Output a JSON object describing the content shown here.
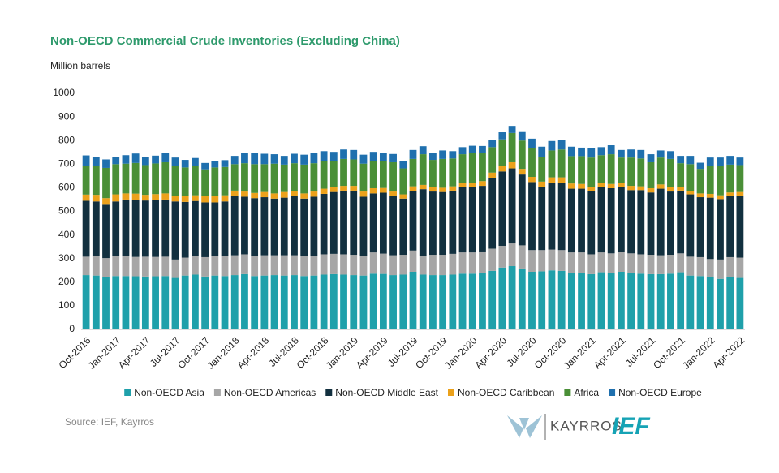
{
  "chart_data": {
    "type": "stacked_bar",
    "title": "Non-OECD Commercial Crude Inventories (Excluding China)",
    "y_label": "Million barrels",
    "source": "Source: IEF, Kayrros",
    "logos": [
      "KAYRROS",
      "IEF"
    ],
    "ylim": [
      0,
      1000
    ],
    "yticks": [
      0,
      100,
      200,
      300,
      400,
      500,
      600,
      700,
      800,
      900,
      1000
    ],
    "grid": false,
    "legend": "bottom",
    "categories": [
      "Oct-2016",
      null,
      null,
      "Jan-2017",
      null,
      null,
      "Apr-2017",
      null,
      null,
      "Jul-2017",
      null,
      null,
      "Oct-2017",
      null,
      null,
      "Jan-2018",
      null,
      null,
      "Apr-2018",
      null,
      null,
      "Jul-2018",
      null,
      null,
      "Oct-2018",
      null,
      null,
      "Jan-2019",
      null,
      null,
      "Apr-2019",
      null,
      null,
      "Jul-2019",
      null,
      null,
      "Oct-2019",
      null,
      null,
      "Jan-2020",
      null,
      null,
      "Apr-2020",
      null,
      null,
      "Jul-2020",
      null,
      null,
      "Oct-2020",
      null,
      null,
      "Jan-2021",
      null,
      null,
      "Apr-2021",
      null,
      null,
      "Jul-2021",
      null,
      null,
      "Oct-2021",
      null,
      null,
      "Jan-2022",
      null,
      null,
      "Apr-2022"
    ],
    "series": [
      {
        "name": "Non-OECD Asia",
        "color": "#1fa0aa",
        "values": [
          230,
          228,
          222,
          226,
          226,
          225,
          224,
          225,
          226,
          218,
          228,
          232,
          224,
          228,
          226,
          230,
          234,
          226,
          228,
          230,
          228,
          230,
          226,
          228,
          232,
          234,
          232,
          230,
          228,
          236,
          235,
          230,
          232,
          244,
          232,
          230,
          230,
          232,
          236,
          236,
          238,
          248,
          262,
          268,
          258,
          244,
          246,
          250,
          248,
          240,
          238,
          234,
          242,
          240,
          244,
          238,
          236,
          234,
          234,
          236,
          242,
          228,
          226,
          220,
          214,
          222,
          218
        ]
      },
      {
        "name": "Non-OECD Americas",
        "color": "#a6a6a6",
        "values": [
          78,
          82,
          80,
          86,
          84,
          82,
          84,
          82,
          82,
          78,
          76,
          78,
          82,
          82,
          84,
          84,
          84,
          86,
          86,
          84,
          86,
          84,
          84,
          84,
          86,
          86,
          86,
          86,
          84,
          90,
          86,
          84,
          84,
          90,
          80,
          86,
          86,
          88,
          90,
          90,
          92,
          94,
          92,
          96,
          98,
          92,
          90,
          88,
          88,
          86,
          88,
          84,
          84,
          82,
          84,
          84,
          82,
          82,
          80,
          80,
          80,
          80,
          80,
          78,
          82,
          84,
          86
        ]
      },
      {
        "name": "Non-OECD Middle East",
        "color": "#12303f",
        "values": [
          237,
          232,
          226,
          230,
          240,
          242,
          238,
          240,
          242,
          246,
          236,
          234,
          232,
          228,
          232,
          250,
          244,
          244,
          246,
          240,
          244,
          250,
          244,
          250,
          256,
          262,
          270,
          272,
          250,
          250,
          258,
          252,
          238,
          252,
          282,
          268,
          266,
          268,
          276,
          276,
          278,
          300,
          315,
          318,
          300,
          288,
          268,
          284,
          284,
          270,
          270,
          268,
          276,
          276,
          276,
          268,
          272,
          264,
          282,
          268,
          266,
          264,
          254,
          260,
          256,
          258,
          262
        ]
      },
      {
        "name": "Non-OECD Caribbean",
        "color": "#eba11b",
        "values": [
          26,
          28,
          28,
          30,
          26,
          26,
          24,
          26,
          26,
          24,
          26,
          24,
          28,
          26,
          26,
          24,
          22,
          22,
          22,
          22,
          24,
          22,
          22,
          22,
          22,
          22,
          20,
          20,
          22,
          22,
          20,
          18,
          18,
          20,
          18,
          18,
          18,
          18,
          20,
          20,
          20,
          22,
          24,
          26,
          24,
          22,
          22,
          22,
          24,
          22,
          20,
          18,
          18,
          18,
          18,
          18,
          16,
          18,
          18,
          18,
          16,
          14,
          16,
          16,
          16,
          16,
          16
        ]
      },
      {
        "name": "Africa",
        "color": "#4a8f37",
        "values": [
          122,
          124,
          128,
          128,
          126,
          130,
          126,
          130,
          132,
          128,
          120,
          124,
          112,
          122,
          120,
          112,
          120,
          122,
          118,
          126,
          116,
          118,
          122,
          120,
          118,
          110,
          114,
          112,
          118,
          116,
          114,
          124,
          110,
          116,
          130,
          116,
          122,
          118,
          120,
          124,
          118,
          108,
          112,
          124,
          120,
          122,
          104,
          114,
          118,
          116,
          118,
          124,
          118,
          126,
          106,
          120,
          118,
          110,
          114,
          120,
          100,
          114,
          104,
          120,
          124,
          118,
          114
        ]
      },
      {
        "name": "Non-OECD Europe",
        "color": "#1f70ae",
        "values": [
          44,
          36,
          36,
          31,
          36,
          40,
          34,
          33,
          39,
          34,
          32,
          34,
          27,
          27,
          29,
          35,
          42,
          46,
          44,
          40,
          37,
          40,
          42,
          44,
          41,
          38,
          40,
          40,
          38,
          38,
          34,
          35,
          30,
          38,
          34,
          28,
          36,
          31,
          30,
          32,
          31,
          30,
          30,
          30,
          36,
          40,
          44,
          40,
          41,
          40,
          36,
          40,
          34,
          38,
          32,
          34,
          36,
          34,
          30,
          33,
          31,
          35,
          26,
          34,
          36,
          37,
          32
        ]
      }
    ]
  }
}
